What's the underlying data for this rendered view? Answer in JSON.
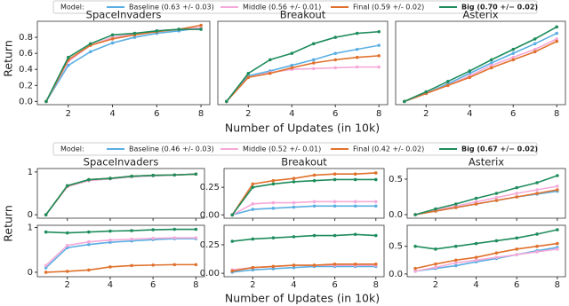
{
  "chart_data": [
    {
      "type": "line",
      "legend": {
        "title": "Model:",
        "entries": [
          {
            "name": "Baseline (0.63 +/- 0.03)",
            "color": "#5aaee3",
            "bold": false
          },
          {
            "name": "Middle (0.56 +/- 0.01)",
            "color": "#f5a9d8",
            "bold": false
          },
          {
            "name": "Final (0.59 +/- 0.02)",
            "color": "#e0712c",
            "bold": false
          },
          {
            "name": "Big (0.70 +/− 0.02)",
            "color": "#1e8c5c",
            "bold": true
          }
        ]
      },
      "xlabel": "Number of Updates (in 10k)",
      "ylabel": "Return",
      "x": [
        1,
        2,
        3,
        4,
        5,
        6,
        7,
        8
      ],
      "xlim": [
        0.6,
        8.4
      ],
      "xticks": [
        2,
        4,
        6,
        8
      ],
      "ylim": [
        -0.04,
        1.0
      ],
      "yticks": [
        {
          "value": 0,
          "label": "0.0"
        },
        0.2,
        0.4,
        0.6,
        0.8
      ],
      "panels": [
        {
          "title": "SpaceInvaders",
          "series": [
            {
              "values": [
                0,
                0.45,
                0.62,
                0.73,
                0.8,
                0.85,
                0.88,
                0.92
              ]
            },
            {
              "values": [
                0,
                0.5,
                0.7,
                0.8,
                0.84,
                0.88,
                0.9,
                0.92
              ]
            },
            {
              "values": [
                0,
                0.52,
                0.7,
                0.78,
                0.83,
                0.87,
                0.9,
                0.95
              ]
            },
            {
              "values": [
                0,
                0.55,
                0.72,
                0.83,
                0.85,
                0.88,
                0.9,
                0.9
              ]
            }
          ]
        },
        {
          "title": "Breakout",
          "series": [
            {
              "values": [
                0,
                0.32,
                0.38,
                0.45,
                0.52,
                0.6,
                0.65,
                0.7
              ]
            },
            {
              "values": [
                0,
                0.3,
                0.36,
                0.4,
                0.41,
                0.42,
                0.43,
                0.43
              ]
            },
            {
              "values": [
                0,
                0.3,
                0.35,
                0.42,
                0.48,
                0.52,
                0.55,
                0.57
              ]
            },
            {
              "values": [
                0,
                0.35,
                0.52,
                0.6,
                0.72,
                0.8,
                0.85,
                0.87
              ]
            }
          ]
        },
        {
          "title": "Asterix",
          "series": [
            {
              "values": [
                0,
                0.1,
                0.22,
                0.35,
                0.48,
                0.6,
                0.72,
                0.85
              ]
            },
            {
              "values": [
                0,
                0.1,
                0.2,
                0.32,
                0.45,
                0.55,
                0.65,
                0.78
              ]
            },
            {
              "values": [
                0,
                0.1,
                0.2,
                0.3,
                0.42,
                0.52,
                0.62,
                0.75
              ]
            },
            {
              "values": [
                0,
                0.12,
                0.25,
                0.38,
                0.52,
                0.65,
                0.78,
                0.93
              ]
            }
          ]
        }
      ]
    },
    {
      "type": "line",
      "legend": {
        "title": "Model:",
        "entries": [
          {
            "name": "Baseline (0.46 +/- 0.03)",
            "color": "#5aaee3",
            "bold": false
          },
          {
            "name": "Middle (0.52 +/- 0.01)",
            "color": "#f5a9d8",
            "bold": false
          },
          {
            "name": "Final (0.42 +/- 0.02)",
            "color": "#e0712c",
            "bold": false
          },
          {
            "name": "Big (0.67 +/− 0.02)",
            "color": "#1e8c5c",
            "bold": true
          }
        ]
      },
      "xlabel": "Number of Updates (in 10k)",
      "ylabel": "Return",
      "x": [
        1,
        2,
        3,
        4,
        5,
        6,
        7,
        8
      ],
      "xlim": [
        0.6,
        8.4
      ],
      "xticks": [
        2,
        4,
        6,
        8
      ],
      "panels": [
        {
          "title": "SpaceInvaders",
          "ylim": [
            -0.08,
            1.08
          ],
          "yticks": [
            0,
            1
          ],
          "series": [
            {
              "values": [
                0,
                0.66,
                0.8,
                0.84,
                0.89,
                0.91,
                0.93,
                0.95
              ]
            },
            {
              "values": [
                0,
                0.66,
                0.8,
                0.84,
                0.89,
                0.91,
                0.93,
                0.95
              ]
            },
            {
              "values": [
                0,
                0.67,
                0.82,
                0.85,
                0.9,
                0.92,
                0.93,
                0.95
              ]
            },
            {
              "values": [
                0,
                0.68,
                0.82,
                0.85,
                0.9,
                0.92,
                0.93,
                0.95
              ]
            }
          ]
        },
        {
          "title": "Breakout",
          "ylim": [
            -0.03,
            0.42
          ],
          "yticks": [
            {
              "value": 0,
              "label": "0.00"
            },
            0.25
          ],
          "series": [
            {
              "values": [
                0,
                0.05,
                0.06,
                0.07,
                0.08,
                0.08,
                0.08,
                0.08
              ]
            },
            {
              "values": [
                0,
                0.1,
                0.11,
                0.11,
                0.12,
                0.12,
                0.12,
                0.12
              ]
            },
            {
              "values": [
                0,
                0.28,
                0.31,
                0.33,
                0.36,
                0.37,
                0.37,
                0.38
              ]
            },
            {
              "values": [
                0,
                0.25,
                0.28,
                0.3,
                0.31,
                0.32,
                0.32,
                0.32
              ]
            }
          ]
        },
        {
          "title": "Asterix",
          "ylim": [
            -0.05,
            0.65
          ],
          "yticks": [
            {
              "value": 0,
              "label": "0.0"
            },
            0.5
          ],
          "series": [
            {
              "values": [
                0,
                0.05,
                0.1,
                0.15,
                0.2,
                0.25,
                0.29,
                0.33
              ]
            },
            {
              "values": [
                0,
                0.06,
                0.12,
                0.18,
                0.24,
                0.3,
                0.35,
                0.4
              ]
            },
            {
              "values": [
                0,
                0.05,
                0.1,
                0.15,
                0.2,
                0.25,
                0.3,
                0.35
              ]
            },
            {
              "values": [
                0,
                0.08,
                0.15,
                0.23,
                0.3,
                0.38,
                0.45,
                0.55
              ]
            }
          ]
        },
        {
          "ylim": [
            -0.1,
            1.05
          ],
          "yticks": [
            0,
            1
          ],
          "series": [
            {
              "values": [
                0.1,
                0.55,
                0.62,
                0.67,
                0.7,
                0.73,
                0.75,
                0.75
              ]
            },
            {
              "values": [
                0.15,
                0.6,
                0.68,
                0.72,
                0.74,
                0.76,
                0.77,
                0.77
              ]
            },
            {
              "values": [
                0,
                0.02,
                0.05,
                0.12,
                0.15,
                0.16,
                0.17,
                0.17
              ]
            },
            {
              "values": [
                0.9,
                0.88,
                0.9,
                0.92,
                0.93,
                0.95,
                0.96,
                0.96
              ]
            }
          ]
        },
        {
          "ylim": [
            -0.03,
            0.42
          ],
          "yticks": [
            {
              "value": 0,
              "label": "0.00"
            },
            0.25
          ],
          "series": [
            {
              "values": [
                0.01,
                0.03,
                0.04,
                0.05,
                0.06,
                0.06,
                0.06,
                0.06
              ]
            },
            {
              "values": [
                0.03,
                0.05,
                0.06,
                0.07,
                0.07,
                0.07,
                0.07,
                0.07
              ]
            },
            {
              "values": [
                0.02,
                0.05,
                0.06,
                0.07,
                0.07,
                0.08,
                0.08,
                0.08
              ]
            },
            {
              "values": [
                0.28,
                0.3,
                0.31,
                0.32,
                0.33,
                0.33,
                0.34,
                0.33
              ]
            }
          ]
        },
        {
          "ylim": [
            -0.05,
            0.88
          ],
          "yticks": [
            {
              "value": 0,
              "label": "0.0"
            },
            0.5
          ],
          "series": [
            {
              "values": [
                0.05,
                0.1,
                0.15,
                0.22,
                0.28,
                0.35,
                0.42,
                0.48
              ]
            },
            {
              "values": [
                0.05,
                0.12,
                0.2,
                0.25,
                0.3,
                0.35,
                0.4,
                0.45
              ]
            },
            {
              "values": [
                0.1,
                0.18,
                0.25,
                0.3,
                0.38,
                0.45,
                0.5,
                0.55
              ]
            },
            {
              "values": [
                0.5,
                0.45,
                0.5,
                0.55,
                0.6,
                0.65,
                0.72,
                0.8
              ]
            }
          ]
        }
      ]
    }
  ]
}
